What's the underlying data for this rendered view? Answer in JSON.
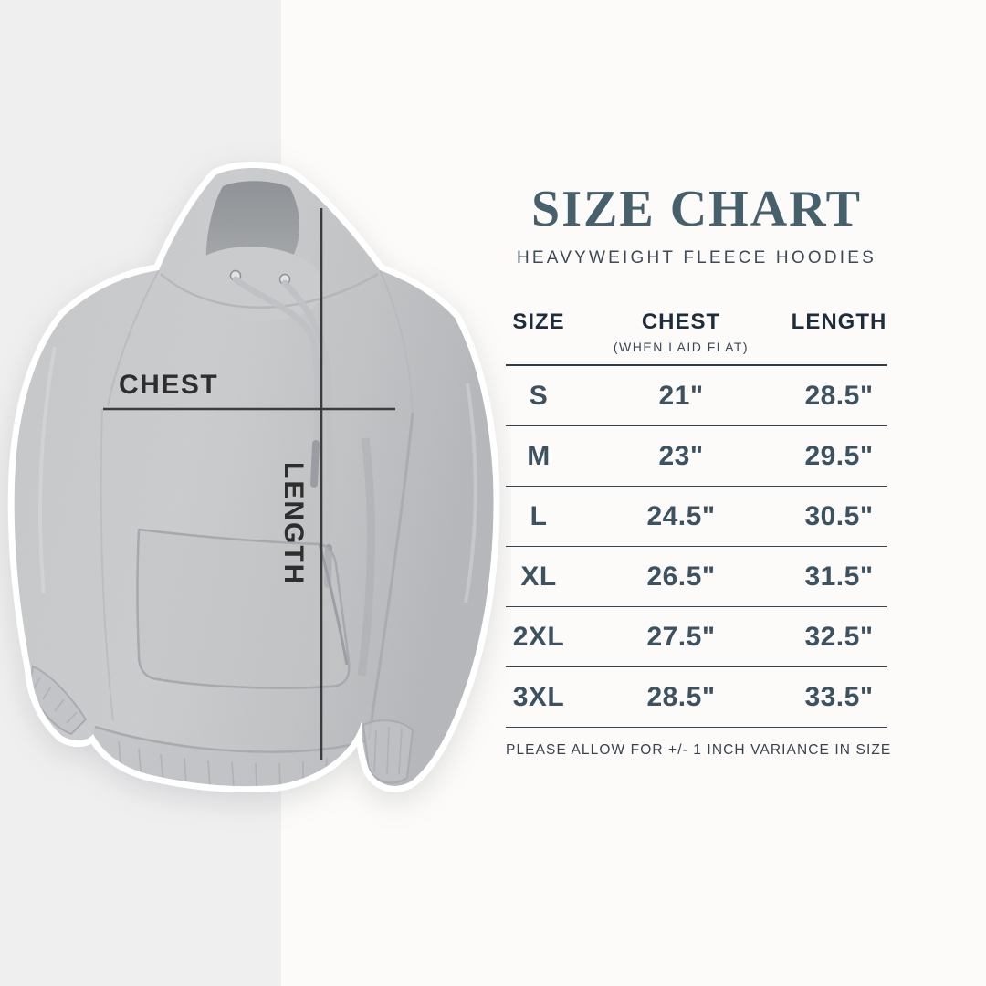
{
  "canvas": {
    "background": "#fcfbf9",
    "band_color": "#efefef"
  },
  "header": {
    "title": "SIZE CHART",
    "subtitle": "HEAVYWEIGHT FLEECE HOODIES",
    "title_color": "#46606c"
  },
  "product": {
    "chest_label": "CHEST",
    "length_label": "LENGTH"
  },
  "size_table": {
    "columns": [
      {
        "label": "SIZE",
        "sublabel": ""
      },
      {
        "label": "CHEST",
        "sublabel": "(WHEN LAID FLAT)"
      },
      {
        "label": "LENGTH",
        "sublabel": ""
      }
    ],
    "unit": "inches",
    "footnote": "PLEASE ALLOW FOR +/- 1 INCH VARIANCE IN SIZE"
  },
  "colors": {
    "header_text": "#1e2d3b",
    "value_text": "#3d5260",
    "divider": "#2e3d49",
    "annotation_line": "#3c3c3c",
    "hoodie_gray": "#c9cacc"
  },
  "chart_data": {
    "type": "table",
    "title": "SIZE CHART",
    "subtitle": "HEAVYWEIGHT FLEECE HOODIES",
    "columns": [
      "SIZE",
      "CHEST (WHEN LAID FLAT)",
      "LENGTH"
    ],
    "rows": [
      {
        "size": "S",
        "chest": "21\"",
        "length": "28.5\""
      },
      {
        "size": "M",
        "chest": "23\"",
        "length": "29.5\""
      },
      {
        "size": "L",
        "chest": "24.5\"",
        "length": "30.5\""
      },
      {
        "size": "XL",
        "chest": "26.5\"",
        "length": "31.5\""
      },
      {
        "size": "2XL",
        "chest": "27.5\"",
        "length": "32.5\""
      },
      {
        "size": "3XL",
        "chest": "28.5\"",
        "length": "33.5\""
      }
    ],
    "note": "PLEASE ALLOW FOR +/- 1 INCH VARIANCE IN SIZE"
  }
}
